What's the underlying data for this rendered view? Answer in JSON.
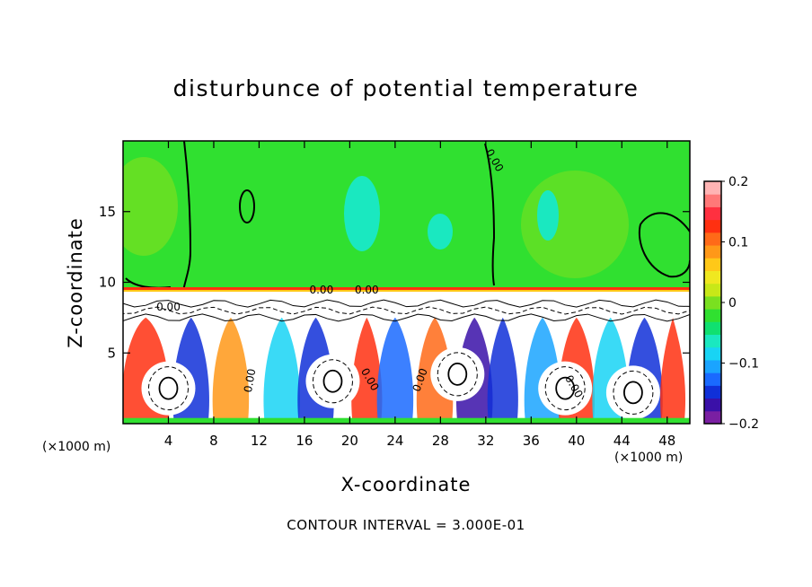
{
  "chart_data": {
    "type": "heatmap",
    "title": "disturbunce of potential temperature",
    "xlabel": "X-coordinate",
    "ylabel": "Z-coordinate",
    "x_unit_label": "(×1000 m)",
    "x_unit_label_right": "(×1000 m)",
    "xlim": [
      0,
      50
    ],
    "ylim": [
      0,
      20
    ],
    "x_ticks": [
      4,
      8,
      12,
      16,
      20,
      24,
      28,
      32,
      36,
      40,
      44,
      48
    ],
    "x_tick_labels": [
      "4",
      "8",
      "12",
      "16",
      "20",
      "24",
      "28",
      "32",
      "36",
      "40",
      "44",
      "48"
    ],
    "y_ticks": [
      5,
      10,
      15
    ],
    "y_tick_labels": [
      "5",
      "10",
      "15"
    ],
    "colorbar": {
      "range": [
        -0.2,
        0.2
      ],
      "ticks": [
        0.2,
        0.1,
        0,
        -0.1,
        -0.2
      ],
      "tick_labels": [
        "0.2",
        "0.1",
        "0",
        "−0.1",
        "−0.2"
      ],
      "colors": [
        "#7a1fa2",
        "#3a10a8",
        "#1030d8",
        "#1a6aff",
        "#1aa4ff",
        "#18d4f4",
        "#1ae8c0",
        "#10e070",
        "#30e030",
        "#7ae020",
        "#c8e818",
        "#f0e820",
        "#ffc818",
        "#ff9818",
        "#ff6a18",
        "#ff3010",
        "#ff3040",
        "#ff7878",
        "#ffb4b4"
      ]
    },
    "contour_labels": [
      "0.00",
      "0.00",
      "0.00",
      "0.00",
      "0.00",
      "0.00",
      "0.00",
      "0.00"
    ],
    "annotation": "CONTOUR INTERVAL = 3.000E-01",
    "layer_boundary_z": 9.5,
    "background_value": 0.0
  }
}
